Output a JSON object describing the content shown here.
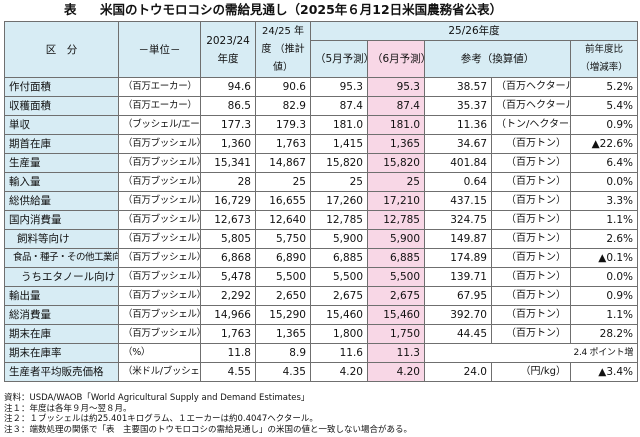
{
  "title": {
    "label": "表",
    "text": "米国のトウモロコシの需給見通し（2025年６月12日米国農務省公表）"
  },
  "header": {
    "kubun": "区　分",
    "unit": "－単位－",
    "y2324": "2023/24 年度",
    "y2425": "24/25 年度 （推計値）",
    "y2526": "25/26年度",
    "may": "（5月予測）",
    "june": "（6月予測）",
    "ref": "参考（換算値）",
    "yoy": "前年度比 （増減率）"
  },
  "rows": [
    {
      "item": "作付面積",
      "unit": "（百万エーカー）",
      "v1": "94.6",
      "v2": "90.6",
      "v3": "95.3",
      "v4": "95.3",
      "ref": "38.57",
      "ref_unit": "（百万ヘクタール）",
      "yoy": "5.2%"
    },
    {
      "item": "収穫面積",
      "unit": "（百万エーカー）",
      "v1": "86.5",
      "v2": "82.9",
      "v3": "87.4",
      "v4": "87.4",
      "ref": "35.37",
      "ref_unit": "（百万ヘクタール）",
      "yoy": "5.4%"
    },
    {
      "item": "単収",
      "unit": "（ブッシェル/エーカー）",
      "v1": "177.3",
      "v2": "179.3",
      "v3": "181.0",
      "v4": "181.0",
      "ref": "11.36",
      "ref_unit": "（トン/ヘクタール）",
      "yoy": "0.9%"
    },
    {
      "item": "期首在庫",
      "unit": "（百万ブッシェル）",
      "v1": "1,360",
      "v2": "1,763",
      "v3": "1,415",
      "v4": "1,365",
      "ref": "34.67",
      "ref_unit": "（百万トン）",
      "yoy": "▲22.6%"
    },
    {
      "item": "生産量",
      "unit": "（百万ブッシェル）",
      "v1": "15,341",
      "v2": "14,867",
      "v3": "15,820",
      "v4": "15,820",
      "ref": "401.84",
      "ref_unit": "（百万トン）",
      "yoy": "6.4%"
    },
    {
      "item": "輸入量",
      "unit": "（百万ブッシェル）",
      "v1": "28",
      "v2": "25",
      "v3": "25",
      "v4": "25",
      "ref": "0.64",
      "ref_unit": "（百万トン）",
      "yoy": "0.0%"
    },
    {
      "item": "総供給量",
      "unit": "（百万ブッシェル）",
      "v1": "16,729",
      "v2": "16,655",
      "v3": "17,260",
      "v4": "17,210",
      "ref": "437.15",
      "ref_unit": "（百万トン）",
      "yoy": "3.3%"
    },
    {
      "item": "国内消費量",
      "unit": "（百万ブッシェル）",
      "v1": "12,673",
      "v2": "12,640",
      "v3": "12,785",
      "v4": "12,785",
      "ref": "324.75",
      "ref_unit": "（百万トン）",
      "yoy": "1.1%"
    },
    {
      "item": "飼料等向け",
      "unit": "（百万ブッシェル）",
      "v1": "5,805",
      "v2": "5,750",
      "v3": "5,900",
      "v4": "5,900",
      "ref": "149.87",
      "ref_unit": "（百万トン）",
      "yoy": "2.6%"
    },
    {
      "item": "食品・種子・その他工業向け",
      "unit": "（百万ブッシェル）",
      "v1": "6,868",
      "v2": "6,890",
      "v3": "6,885",
      "v4": "6,885",
      "ref": "174.89",
      "ref_unit": "（百万トン）",
      "yoy": "▲0.1%"
    },
    {
      "item": "うちエタノール向け",
      "unit": "（百万ブッシェル）",
      "v1": "5,478",
      "v2": "5,500",
      "v3": "5,500",
      "v4": "5,500",
      "ref": "139.71",
      "ref_unit": "（百万トン）",
      "yoy": "0.0%"
    },
    {
      "item": "輸出量",
      "unit": "（百万ブッシェル）",
      "v1": "2,292",
      "v2": "2,650",
      "v3": "2,675",
      "v4": "2,675",
      "ref": "67.95",
      "ref_unit": "（百万トン）",
      "yoy": "0.9%"
    },
    {
      "item": "総消費量",
      "unit": "（百万ブッシェル）",
      "v1": "14,966",
      "v2": "15,290",
      "v3": "15,460",
      "v4": "15,460",
      "ref": "392.70",
      "ref_unit": "（百万トン）",
      "yoy": "1.1%"
    },
    {
      "item": "期末在庫",
      "unit": "（百万ブッシェル）",
      "v1": "1,763",
      "v2": "1,365",
      "v3": "1,800",
      "v4": "1,750",
      "ref": "44.45",
      "ref_unit": "（百万トン）",
      "yoy": "28.2%"
    },
    {
      "item": "期末在庫率",
      "unit": "（%）",
      "v1": "11.8",
      "v2": "8.9",
      "v3": "11.6",
      "v4": "11.3",
      "ref": "",
      "ref_unit": "2.4 ポイント増",
      "yoy": ""
    },
    {
      "item": "生産者平均販売価格",
      "unit": "（米ドル/ブッシェル）",
      "v1": "4.55",
      "v2": "4.35",
      "v3": "4.20",
      "v4": "4.20",
      "ref": "24.0",
      "ref_unit": "（円/kg）",
      "yoy": "▲3.4%"
    }
  ],
  "notes": [
    "資料：USDA/WAOB「World Agricultural Supply and Demand Estimates」",
    "注１：年度は各年９月～翌８月。",
    "注２：１ブッシェルは約25.401キログラム、１エーカーは約0.4047ヘクタール。",
    "注３：端数処理の関係で「表　主要国のトウモロコシの需給見通し」の米国の値と一致しない場合がある。"
  ]
}
